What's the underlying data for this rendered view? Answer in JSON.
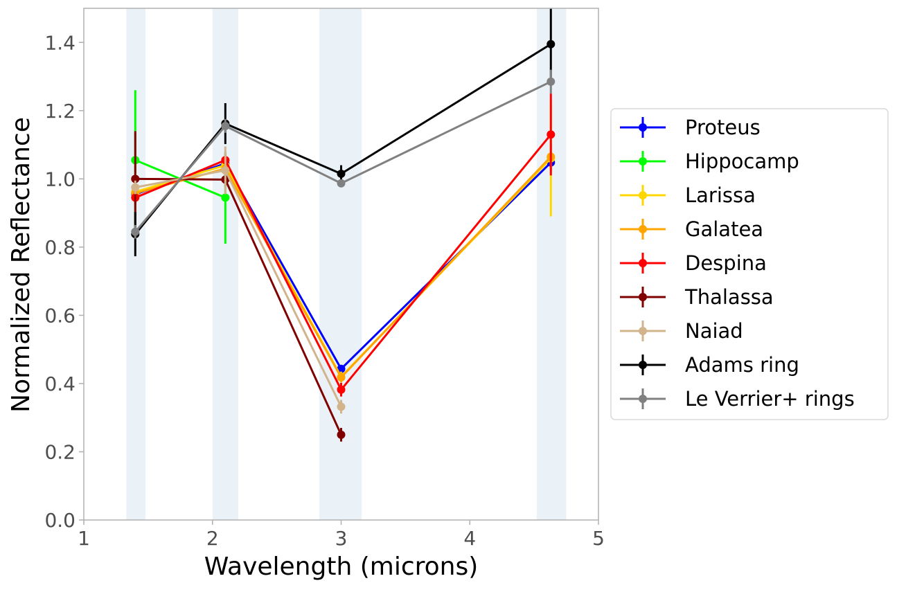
{
  "chart_data": {
    "type": "line",
    "title": "",
    "xlabel": "Wavelength (microns)",
    "ylabel": "Normalized Reflectance",
    "xlim": [
      1,
      5
    ],
    "ylim": [
      0,
      1.5
    ],
    "xticks": [
      1,
      2,
      3,
      4,
      5
    ],
    "xtick_labels": [
      "1",
      "2",
      "3",
      "4",
      "5"
    ],
    "yticks": [
      0.0,
      0.2,
      0.4,
      0.6,
      0.8,
      1.0,
      1.2,
      1.4
    ],
    "ytick_labels": [
      "0.0",
      "0.2",
      "0.4",
      "0.6",
      "0.8",
      "1.0",
      "1.2",
      "1.4"
    ],
    "grid": false,
    "legend_position": "right",
    "bands": [
      {
        "x0": 1.33,
        "x1": 1.48,
        "color": "#eaf2f8"
      },
      {
        "x0": 2.0,
        "x1": 2.2,
        "color": "#eaf2f8"
      },
      {
        "x0": 2.83,
        "x1": 3.16,
        "color": "#eaf2f8"
      },
      {
        "x0": 4.52,
        "x1": 4.75,
        "color": "#eaf2f8"
      }
    ],
    "series": [
      {
        "name": "Proteus",
        "color": "#0000ff",
        "x": [
          1.4,
          2.1,
          3.0,
          4.63
        ],
        "y": [
          0.955,
          1.045,
          0.443,
          1.048
        ],
        "yerr": [
          0.01,
          0.01,
          0.01,
          0.01
        ]
      },
      {
        "name": "Hippocamp",
        "color": "#00ff00",
        "x": [
          1.4,
          2.1
        ],
        "y": [
          1.055,
          0.945
        ],
        "yerr": [
          0.205,
          0.135
        ]
      },
      {
        "name": "Larissa",
        "color": "#ffd700",
        "x": [
          1.4,
          2.1,
          3.0,
          4.63
        ],
        "y": [
          0.962,
          1.04,
          0.42,
          1.06
        ],
        "yerr": [
          0.01,
          0.015,
          0.015,
          0.17
        ]
      },
      {
        "name": "Galatea",
        "color": "#ffa500",
        "x": [
          1.4,
          2.1,
          3.0,
          4.63
        ],
        "y": [
          0.958,
          1.03,
          0.418,
          1.065
        ],
        "yerr": [
          0.01,
          0.015,
          0.015,
          0.04
        ]
      },
      {
        "name": "Despina",
        "color": "#ff0000",
        "x": [
          1.4,
          2.1,
          3.0,
          4.63
        ],
        "y": [
          0.945,
          1.055,
          0.382,
          1.13
        ],
        "yerr": [
          0.02,
          0.02,
          0.02,
          0.12
        ]
      },
      {
        "name": "Thalassa",
        "color": "#800000",
        "x": [
          1.4,
          2.1,
          3.0
        ],
        "y": [
          1.0,
          0.998,
          0.25
        ],
        "yerr": [
          0.14,
          0.02,
          0.02
        ]
      },
      {
        "name": "Naiad",
        "color": "#d2b48c",
        "x": [
          1.4,
          2.1,
          3.0
        ],
        "y": [
          0.975,
          1.025,
          0.332
        ],
        "yerr": [
          0.02,
          0.07,
          0.02
        ]
      },
      {
        "name": "Adams ring",
        "color": "#000000",
        "x": [
          1.4,
          2.1,
          3.0,
          4.63
        ],
        "y": [
          0.838,
          1.162,
          1.015,
          1.395
        ],
        "yerr": [
          0.065,
          0.06,
          0.025,
          0.105
        ]
      },
      {
        "name": "Le Verrier+ rings",
        "color": "#808080",
        "x": [
          1.4,
          2.1,
          3.0,
          4.63
        ],
        "y": [
          0.845,
          1.155,
          0.987,
          1.285
        ],
        "yerr": [
          0.02,
          0.02,
          0.01,
          0.035
        ]
      }
    ]
  }
}
